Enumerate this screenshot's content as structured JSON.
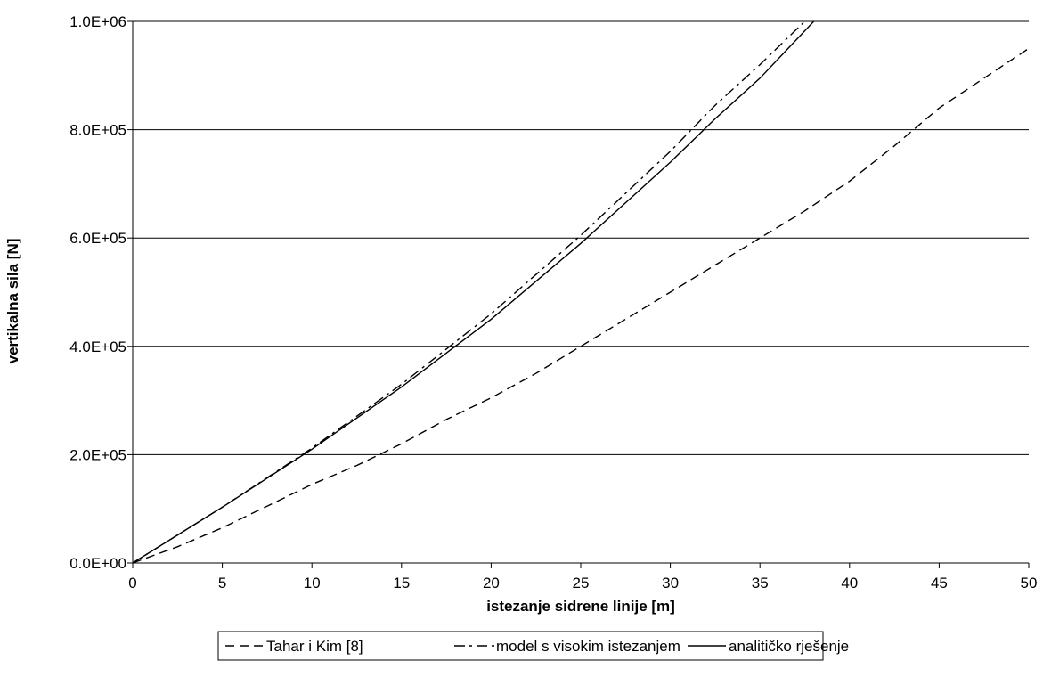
{
  "chart_data": {
    "type": "line",
    "title": "",
    "xlabel": "istezanje sidrene linije [m]",
    "ylabel": "vertikalna sila [N]",
    "xlim": [
      0,
      50
    ],
    "ylim": [
      0,
      1000000
    ],
    "xticks": [
      0,
      5,
      10,
      15,
      20,
      25,
      30,
      35,
      40,
      45,
      50
    ],
    "xtick_labels": [
      "0",
      "5",
      "10",
      "15",
      "20",
      "25",
      "30",
      "35",
      "40",
      "45",
      "50"
    ],
    "yticks": [
      0,
      200000,
      400000,
      600000,
      800000,
      1000000
    ],
    "ytick_labels": [
      "0.0E+00",
      "2.0E+05",
      "4.0E+05",
      "6.0E+05",
      "8.0E+05",
      "1.0E+06"
    ],
    "grid": "horizontal major gridlines",
    "legend_position": "bottom",
    "series": [
      {
        "name": "Tahar i Kim [8]",
        "style": "dashed",
        "color": "#000000",
        "x": [
          0,
          2.5,
          5,
          7.5,
          10,
          12.5,
          15,
          17.5,
          20,
          22.5,
          25,
          27.5,
          30,
          32.5,
          35,
          37.5,
          40,
          42.5,
          45,
          47.5,
          50
        ],
        "y": [
          0,
          30000,
          65000,
          105000,
          145000,
          180000,
          220000,
          265000,
          305000,
          350000,
          400000,
          450000,
          500000,
          550000,
          600000,
          650000,
          705000,
          770000,
          840000,
          895000,
          950000
        ]
      },
      {
        "name": "model s visokim istezanjem",
        "style": "dash-dot",
        "color": "#000000",
        "x": [
          0,
          5,
          10,
          15,
          20,
          25,
          30,
          32.5,
          35,
          37.5
        ],
        "y": [
          0,
          103000,
          212000,
          330000,
          460000,
          605000,
          760000,
          845000,
          920000,
          1000000
        ]
      },
      {
        "name": "analitičko rješenje",
        "style": "solid",
        "color": "#000000",
        "x": [
          0,
          5,
          10,
          15,
          20,
          25,
          30,
          32.5,
          35,
          38
        ],
        "y": [
          0,
          103000,
          210000,
          325000,
          450000,
          590000,
          740000,
          820000,
          895000,
          1000000
        ]
      }
    ]
  }
}
